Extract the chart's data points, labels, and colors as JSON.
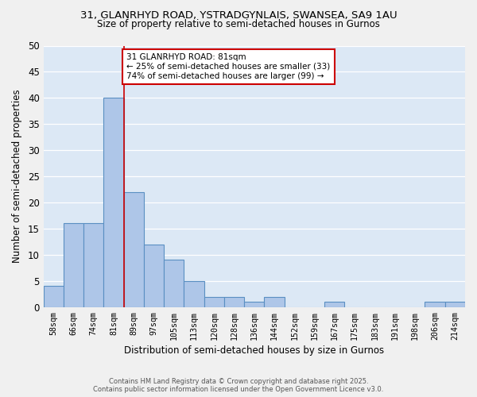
{
  "title_line1": "31, GLANRHYD ROAD, YSTRADGYNLAIS, SWANSEA, SA9 1AU",
  "title_line2": "Size of property relative to semi-detached houses in Gurnos",
  "xlabel": "Distribution of semi-detached houses by size in Gurnos",
  "ylabel": "Number of semi-detached properties",
  "categories": [
    "58sqm",
    "66sqm",
    "74sqm",
    "81sqm",
    "89sqm",
    "97sqm",
    "105sqm",
    "113sqm",
    "120sqm",
    "128sqm",
    "136sqm",
    "144sqm",
    "152sqm",
    "159sqm",
    "167sqm",
    "175sqm",
    "183sqm",
    "191sqm",
    "198sqm",
    "206sqm",
    "214sqm"
  ],
  "values": [
    4,
    16,
    16,
    40,
    22,
    12,
    9,
    5,
    2,
    2,
    1,
    2,
    0,
    0,
    1,
    0,
    0,
    0,
    0,
    1,
    1
  ],
  "bar_color": "#aec6e8",
  "bar_edge_color": "#5a8fc2",
  "background_color": "#dce8f5",
  "grid_color": "#ffffff",
  "vline_color": "#cc0000",
  "vline_x_index": 3,
  "annotation_text": "31 GLANRHYD ROAD: 81sqm\n← 25% of semi-detached houses are smaller (33)\n74% of semi-detached houses are larger (99) →",
  "annotation_box_facecolor": "#ffffff",
  "annotation_box_edgecolor": "#cc0000",
  "ylim": [
    0,
    50
  ],
  "yticks": [
    0,
    5,
    10,
    15,
    20,
    25,
    30,
    35,
    40,
    45,
    50
  ],
  "fig_facecolor": "#f0f0f0",
  "footer_text": "Contains HM Land Registry data © Crown copyright and database right 2025.\nContains public sector information licensed under the Open Government Licence v3.0."
}
